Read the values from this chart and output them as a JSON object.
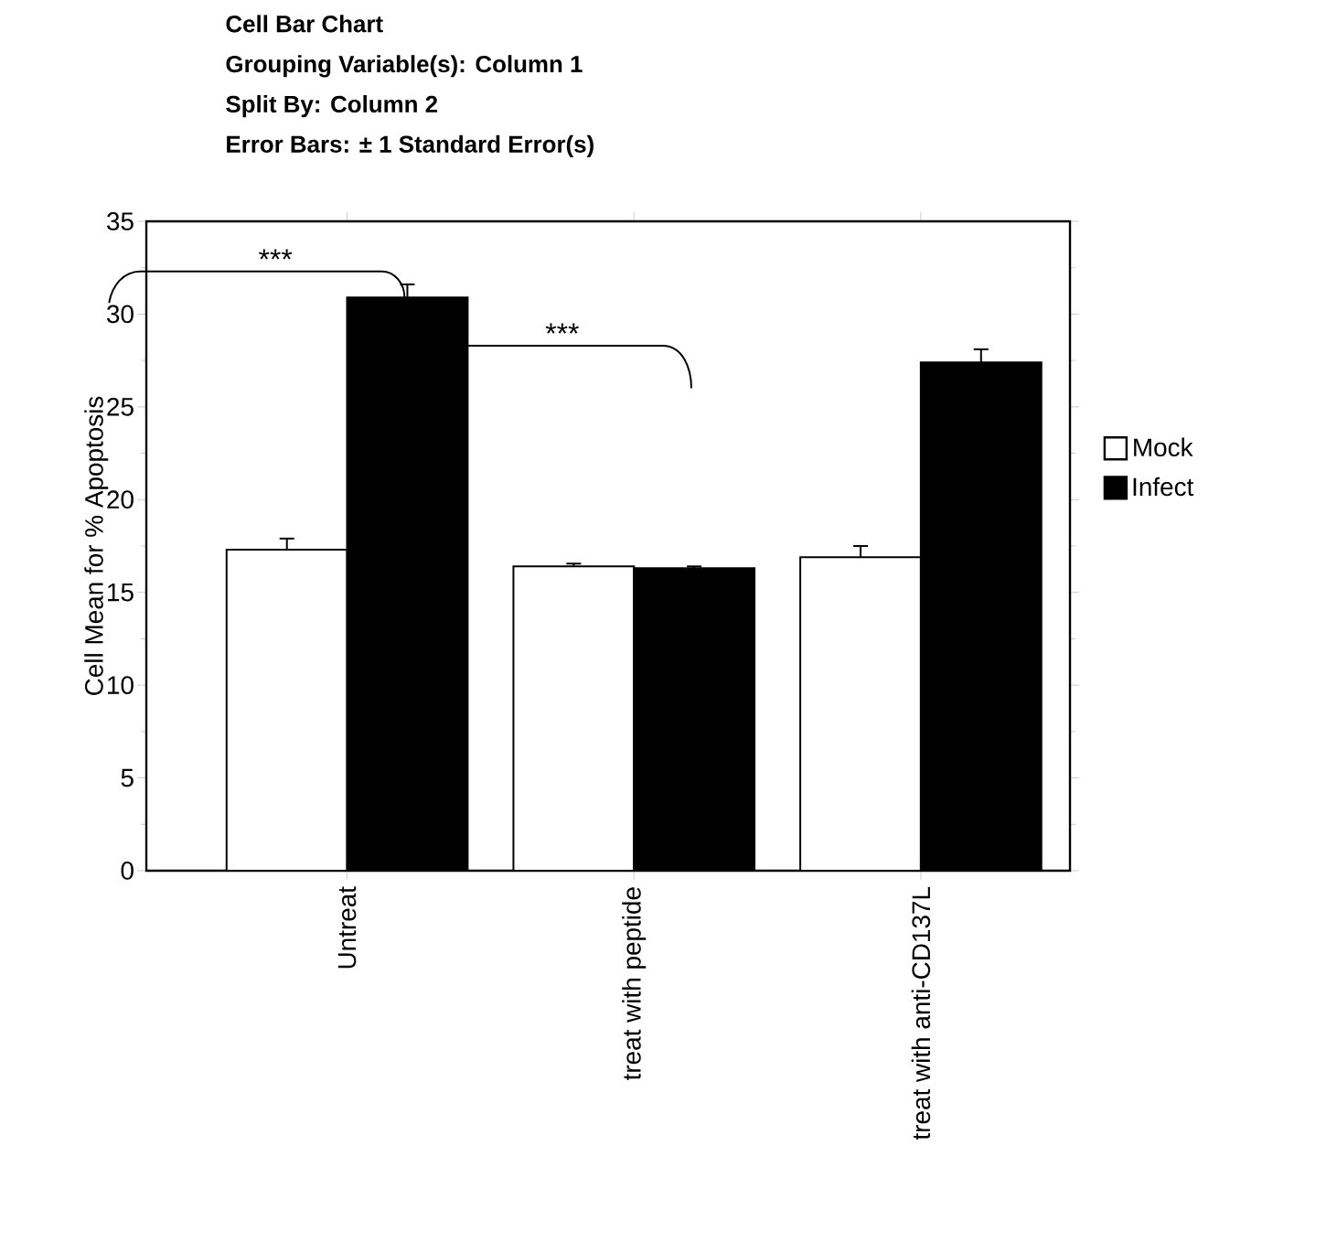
{
  "chart_data": {
    "type": "bar",
    "title": "Cell Bar Chart",
    "subtitle": "Grouping Variable(s): Column 1",
    "annotations": [
      "Split By: Column 2",
      "Error Bars: ± 1 Standard Error(s)",
      "***",
      "***"
    ],
    "ylabel": "Cell Mean for % Apoptosis",
    "categories": [
      "Untreat",
      "treat with peptide",
      "treat with anti-CD137L"
    ],
    "series": [
      {
        "name": "Mock",
        "color": "#ffffff",
        "values": [
          17.3,
          16.4,
          16.9
        ],
        "errors": [
          0.6,
          0.15,
          0.6
        ]
      },
      {
        "name": "Infect",
        "color": "#000000",
        "values": [
          30.9,
          16.3,
          27.4
        ],
        "errors": [
          0.7,
          0.1,
          0.7
        ]
      }
    ],
    "ylim": [
      0,
      35
    ],
    "yticks": [
      0,
      5,
      10,
      15,
      20,
      25,
      30,
      35
    ],
    "legend": "right"
  }
}
